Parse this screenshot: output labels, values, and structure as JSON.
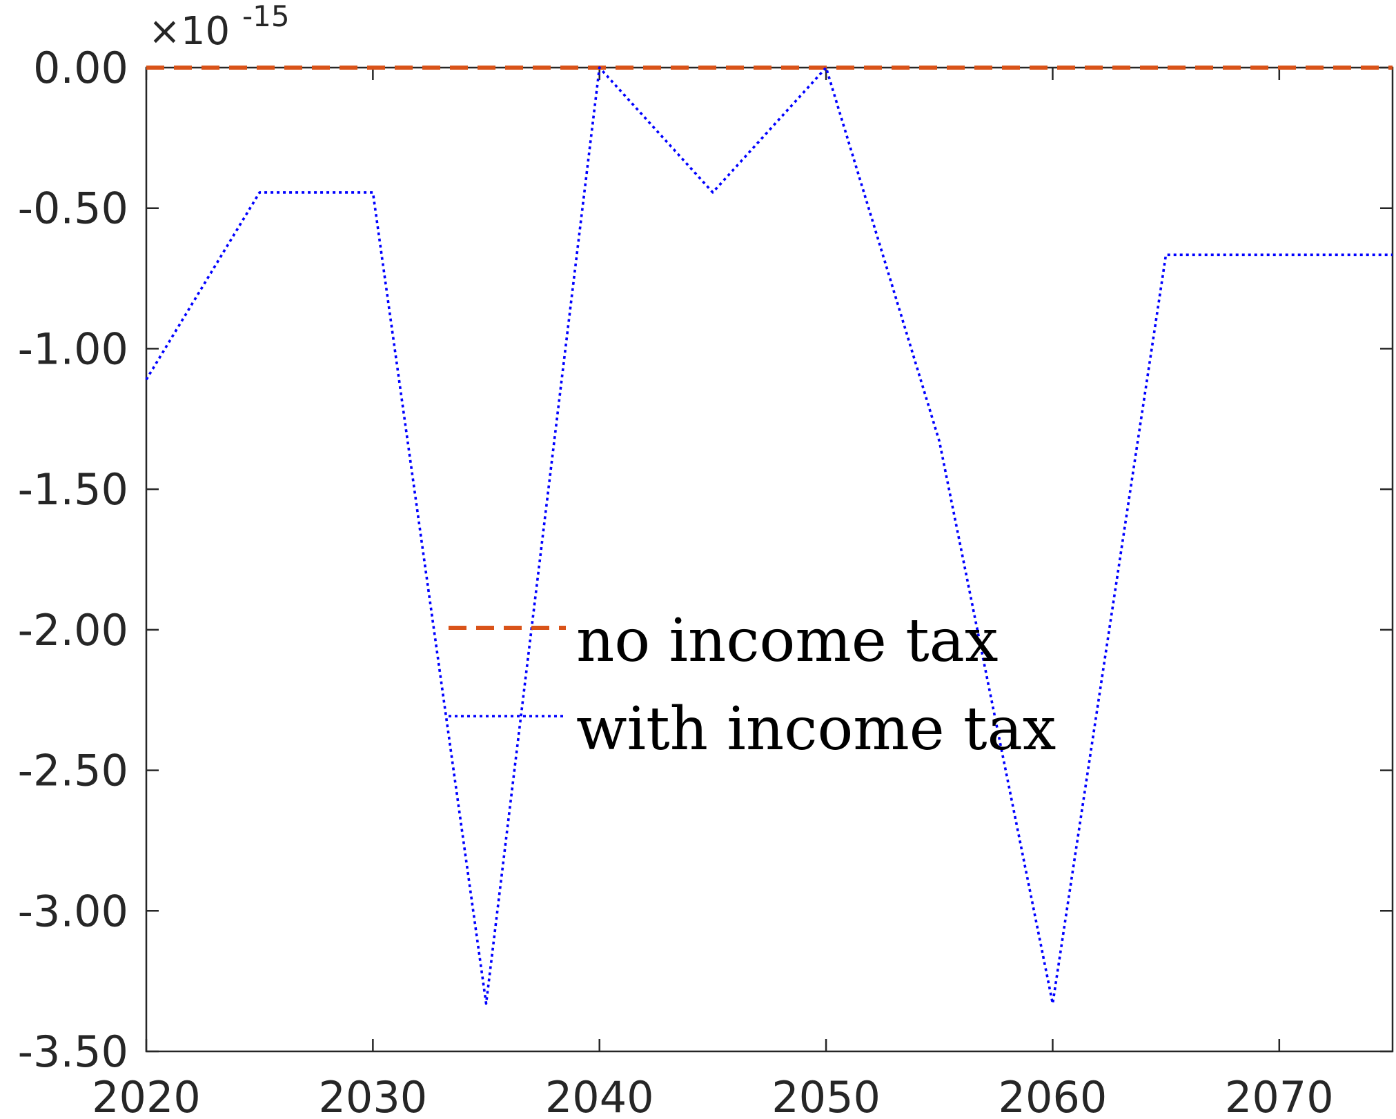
{
  "chart_data": {
    "type": "line",
    "title": "",
    "xlabel": "",
    "ylabel": "",
    "xlim": [
      2020,
      2075
    ],
    "ylim": [
      -3.5,
      0.0
    ],
    "y_exponent_label": "×10",
    "y_exponent_power": "-15",
    "x_ticks": [
      2020,
      2030,
      2040,
      2050,
      2060,
      2070
    ],
    "x_tick_labels": [
      "2020",
      "2030",
      "2040",
      "2050",
      "2060",
      "2070"
    ],
    "y_ticks": [
      0.0,
      -0.5,
      -1.0,
      -1.5,
      -2.0,
      -2.5,
      -3.0,
      -3.5
    ],
    "y_tick_labels": [
      "0.00",
      "-0.50",
      "-1.00",
      "-1.50",
      "-2.00",
      "-2.50",
      "-3.00",
      "-3.50"
    ],
    "grid": false,
    "legend_position": "center",
    "series": [
      {
        "name": "no income tax",
        "color": "#D95319",
        "style": "dashed",
        "x": [
          2020,
          2025,
          2030,
          2035,
          2040,
          2045,
          2050,
          2055,
          2060,
          2065,
          2070,
          2075
        ],
        "y": [
          0,
          0,
          0,
          0,
          0,
          0,
          0,
          0,
          0,
          0,
          0,
          0
        ]
      },
      {
        "name": "with income tax",
        "color": "#0000FF",
        "style": "dotted",
        "x": [
          2020,
          2025,
          2030,
          2035,
          2040,
          2045,
          2050,
          2055,
          2060,
          2065,
          2070,
          2075
        ],
        "y": [
          -1.11,
          -0.444,
          -0.444,
          -3.33,
          0.0,
          -0.444,
          0.0,
          -1.33,
          -3.33,
          -0.666,
          -0.666,
          -0.666
        ]
      }
    ]
  }
}
